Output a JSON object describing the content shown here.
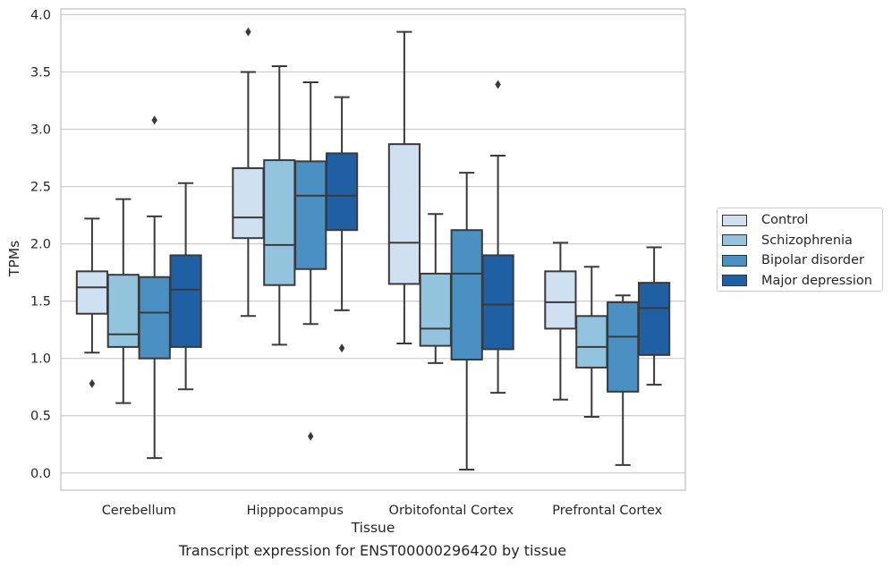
{
  "caption": "Transcript expression for ENST00000296420 by tissue",
  "chart_data": {
    "type": "box",
    "xlabel": "Tissue",
    "ylabel": "TPMs",
    "ylim": [
      -0.15,
      4.05
    ],
    "yticks": [
      "0.0",
      "0.5",
      "1.0",
      "1.5",
      "2.0",
      "2.5",
      "3.0",
      "3.5",
      "4.0"
    ],
    "grid": true,
    "legend_position": "right",
    "categories": [
      "Cerebellum",
      "Hipppocampus",
      "Orbitofontal Cortex",
      "Prefrontal Cortex"
    ],
    "series": [
      {
        "name": "Control",
        "color": "#cfe0f1",
        "boxes": [
          {
            "whisker_low": 1.05,
            "q1": 1.39,
            "median": 1.62,
            "q3": 1.76,
            "whisker_high": 2.22,
            "outliers": [
              0.78
            ]
          },
          {
            "whisker_low": 1.37,
            "q1": 2.05,
            "median": 2.23,
            "q3": 2.66,
            "whisker_high": 3.5,
            "outliers": [
              3.85
            ]
          },
          {
            "whisker_low": 1.13,
            "q1": 1.65,
            "median": 2.01,
            "q3": 2.87,
            "whisker_high": 3.85,
            "outliers": []
          },
          {
            "whisker_low": 0.64,
            "q1": 1.26,
            "median": 1.49,
            "q3": 1.76,
            "whisker_high": 2.01,
            "outliers": []
          }
        ]
      },
      {
        "name": "Schizophrenia",
        "color": "#93c4de",
        "boxes": [
          {
            "whisker_low": 0.61,
            "q1": 1.1,
            "median": 1.21,
            "q3": 1.73,
            "whisker_high": 2.39,
            "outliers": []
          },
          {
            "whisker_low": 1.12,
            "q1": 1.64,
            "median": 1.99,
            "q3": 2.73,
            "whisker_high": 3.55,
            "outliers": []
          },
          {
            "whisker_low": 0.96,
            "q1": 1.11,
            "median": 1.26,
            "q3": 1.74,
            "whisker_high": 2.26,
            "outliers": []
          },
          {
            "whisker_low": 0.49,
            "q1": 0.92,
            "median": 1.1,
            "q3": 1.37,
            "whisker_high": 1.8,
            "outliers": []
          }
        ]
      },
      {
        "name": "Bipolar disorder",
        "color": "#4a90c2",
        "boxes": [
          {
            "whisker_low": 0.13,
            "q1": 1.0,
            "median": 1.4,
            "q3": 1.71,
            "whisker_high": 2.24,
            "outliers": [
              3.08
            ]
          },
          {
            "whisker_low": 1.3,
            "q1": 1.78,
            "median": 2.42,
            "q3": 2.72,
            "whisker_high": 3.41,
            "outliers": [
              0.32
            ]
          },
          {
            "whisker_low": 0.03,
            "q1": 0.99,
            "median": 1.74,
            "q3": 2.12,
            "whisker_high": 2.62,
            "outliers": []
          },
          {
            "whisker_low": 0.07,
            "q1": 0.71,
            "median": 1.19,
            "q3": 1.49,
            "whisker_high": 1.55,
            "outliers": []
          }
        ]
      },
      {
        "name": "Major depression",
        "color": "#1f5fa4",
        "boxes": [
          {
            "whisker_low": 0.73,
            "q1": 1.1,
            "median": 1.6,
            "q3": 1.9,
            "whisker_high": 2.53,
            "outliers": []
          },
          {
            "whisker_low": 1.42,
            "q1": 2.12,
            "median": 2.42,
            "q3": 2.79,
            "whisker_high": 3.28,
            "outliers": [
              1.09
            ]
          },
          {
            "whisker_low": 0.7,
            "q1": 1.08,
            "median": 1.47,
            "q3": 1.9,
            "whisker_high": 2.77,
            "outliers": [
              3.39
            ]
          },
          {
            "whisker_low": 0.77,
            "q1": 1.03,
            "median": 1.44,
            "q3": 1.66,
            "whisker_high": 1.97,
            "outliers": []
          }
        ]
      }
    ]
  }
}
